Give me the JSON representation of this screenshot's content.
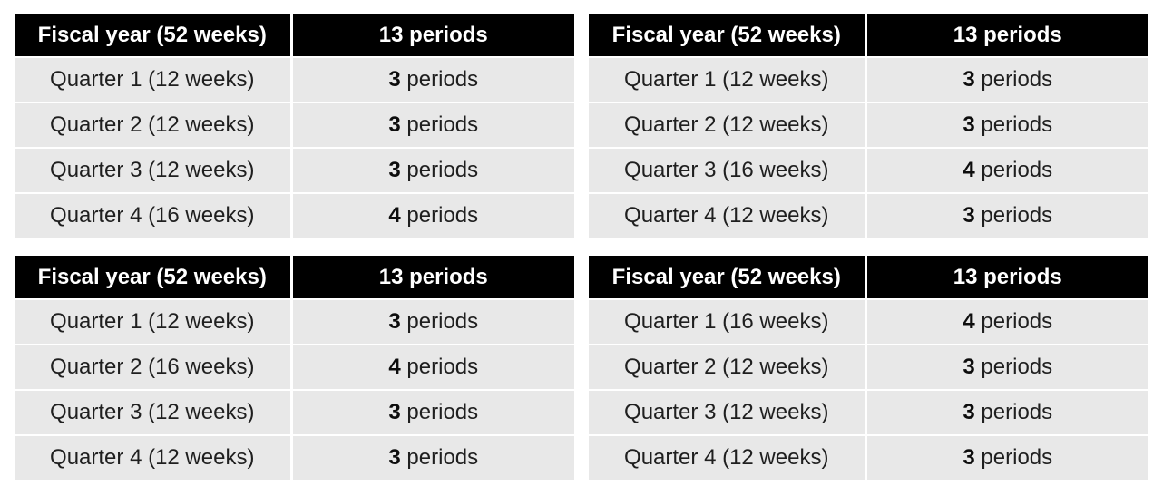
{
  "tables": [
    {
      "position": "top-left",
      "header": {
        "fiscal_year": "Fiscal year (52 weeks)",
        "periods": "13 periods"
      },
      "rows": [
        {
          "quarter": "Quarter 1 (12 weeks)",
          "count": "3",
          "unit": "periods"
        },
        {
          "quarter": "Quarter 2 (12 weeks)",
          "count": "3",
          "unit": "periods"
        },
        {
          "quarter": "Quarter 3 (12 weeks)",
          "count": "3",
          "unit": "periods"
        },
        {
          "quarter": "Quarter 4 (16 weeks)",
          "count": "4",
          "unit": "periods"
        }
      ]
    },
    {
      "position": "top-right",
      "header": {
        "fiscal_year": "Fiscal year (52 weeks)",
        "periods": "13 periods"
      },
      "rows": [
        {
          "quarter": "Quarter 1 (12 weeks)",
          "count": "3",
          "unit": "periods"
        },
        {
          "quarter": "Quarter 2 (12 weeks)",
          "count": "3",
          "unit": "periods"
        },
        {
          "quarter": "Quarter 3 (16 weeks)",
          "count": "4",
          "unit": "periods"
        },
        {
          "quarter": "Quarter 4 (12 weeks)",
          "count": "3",
          "unit": "periods"
        }
      ]
    },
    {
      "position": "bottom-left",
      "header": {
        "fiscal_year": "Fiscal year (52 weeks)",
        "periods": "13 periods"
      },
      "rows": [
        {
          "quarter": "Quarter 1 (12 weeks)",
          "count": "3",
          "unit": "periods"
        },
        {
          "quarter": "Quarter 2 (16 weeks)",
          "count": "4",
          "unit": "periods"
        },
        {
          "quarter": "Quarter 3 (12 weeks)",
          "count": "3",
          "unit": "periods"
        },
        {
          "quarter": "Quarter 4 (12 weeks)",
          "count": "3",
          "unit": "periods"
        }
      ]
    },
    {
      "position": "bottom-right",
      "header": {
        "fiscal_year": "Fiscal year (52 weeks)",
        "periods": "13 periods"
      },
      "rows": [
        {
          "quarter": "Quarter 1 (16 weeks)",
          "count": "4",
          "unit": "periods"
        },
        {
          "quarter": "Quarter 2 (12 weeks)",
          "count": "3",
          "unit": "periods"
        },
        {
          "quarter": "Quarter 3 (12 weeks)",
          "count": "3",
          "unit": "periods"
        },
        {
          "quarter": "Quarter 4 (12 weeks)",
          "count": "3",
          "unit": "periods"
        }
      ]
    }
  ],
  "colors": {
    "header_bg": "#000000",
    "header_text": "#ffffff",
    "row_bg": "#e8e8e8",
    "row_text": "#1f1f1f"
  }
}
